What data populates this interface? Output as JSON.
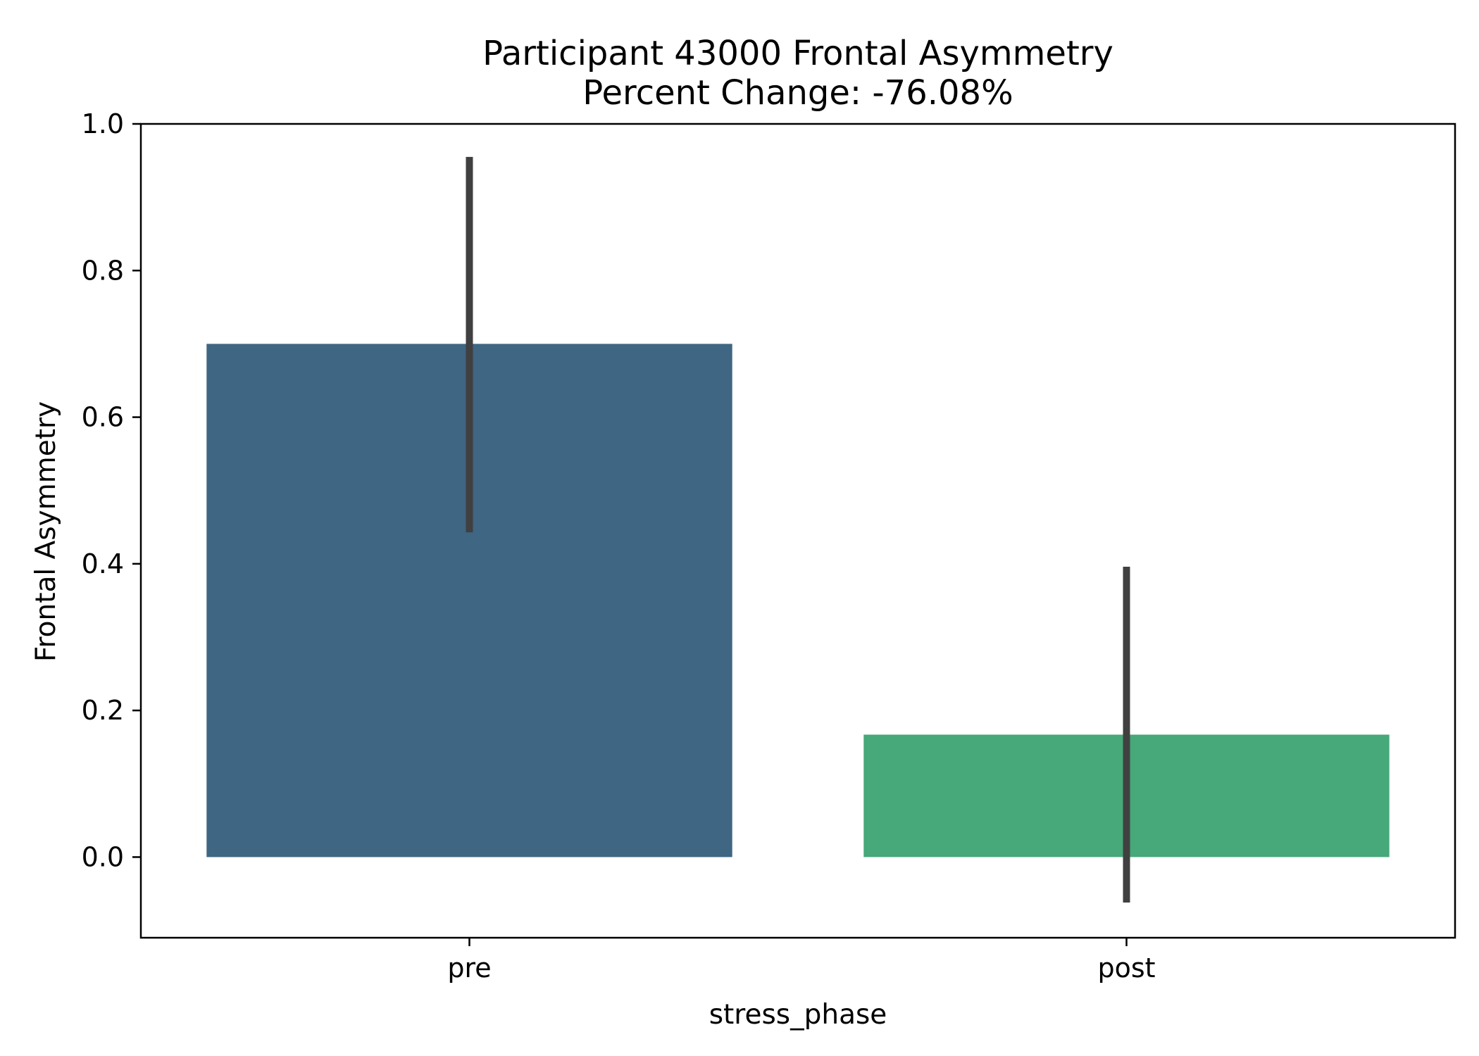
{
  "chart_data": {
    "type": "bar",
    "title": "Participant 43000 Frontal Asymmetry",
    "subtitle": "Percent Change: -76.08%",
    "xlabel": "stress_phase",
    "ylabel": "Frontal Asymmetry",
    "categories": [
      "pre",
      "post"
    ],
    "values": [
      0.7,
      0.167
    ],
    "error_bars": [
      {
        "low": 0.443,
        "high": 0.955
      },
      {
        "low": -0.062,
        "high": 0.396
      }
    ],
    "ylim": [
      -0.11,
      1.0
    ],
    "yticks": [
      0.0,
      0.2,
      0.4,
      0.6,
      0.8,
      1.0
    ],
    "ytick_labels": [
      "0.0",
      "0.2",
      "0.4",
      "0.6",
      "0.8",
      "1.0"
    ],
    "colors": [
      "#3f6682",
      "#47a879"
    ],
    "error_color": "#404040",
    "grid": false,
    "legend": "none"
  }
}
